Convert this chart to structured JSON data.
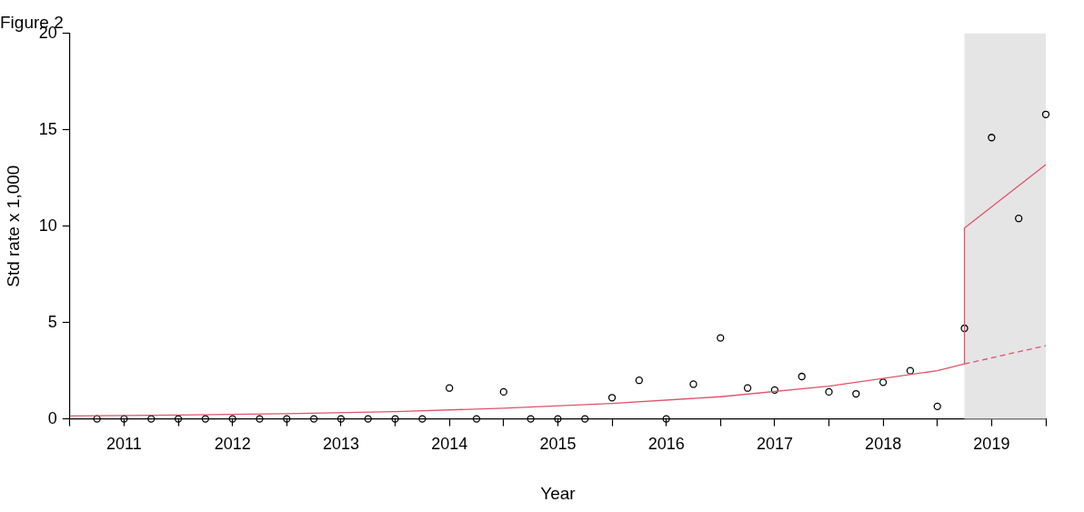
{
  "chart_data": {
    "type": "scatter",
    "title": "Figure 2",
    "xlabel": "Year",
    "ylabel": "Std rate x 1,000",
    "xlim": [
      2010.5,
      2019.5
    ],
    "ylim": [
      0,
      20
    ],
    "xticks": [
      {
        "value": 2010.5,
        "label": null
      },
      2011,
      {
        "value": 2011.5,
        "label": null
      },
      2012,
      {
        "value": 2012.5,
        "label": null
      },
      2013,
      {
        "value": 2013.5,
        "label": null
      },
      2014,
      {
        "value": 2014.5,
        "label": null
      },
      2015,
      {
        "value": 2015.5,
        "label": null
      },
      2016,
      {
        "value": 2016.5,
        "label": null
      },
      2017,
      {
        "value": 2017.5,
        "label": null
      },
      2018,
      {
        "value": 2018.5,
        "label": null
      },
      2019,
      {
        "value": 2019.5,
        "label": null
      }
    ],
    "yticks": [
      0,
      5,
      10,
      15,
      20
    ],
    "grid": false,
    "legend": false,
    "bands": [
      {
        "axis": "x",
        "from": 2018.75,
        "to": 2019.5,
        "color": "#e5e5e5"
      }
    ],
    "series": [
      {
        "color": "#000000",
        "marker": "circle",
        "x": [
          2010.75,
          2011,
          2011.25,
          2011.5,
          2011.75,
          2012,
          2012.25,
          2012.5,
          2012.75,
          2013,
          2013.25,
          2013.5,
          2013.75,
          2014,
          2014.25,
          2014.5,
          2014.75,
          2015,
          2015.25,
          2015.5,
          2015.75,
          2016,
          2016.25,
          2016.5,
          2016.75,
          2017,
          2017.25,
          2017.5,
          2017.75,
          2018,
          2018.25,
          2018.5,
          2018.75,
          2019,
          2019.25,
          2019.5
        ],
        "values": [
          0,
          0,
          0,
          0,
          0,
          0,
          0,
          0,
          0,
          0,
          0,
          0,
          0,
          1.6,
          0,
          1.4,
          0,
          0,
          0,
          1.1,
          2.0,
          0,
          1.8,
          4.2,
          1.6,
          1.5,
          2.2,
          1.4,
          1.3,
          1.9,
          2.5,
          0.65,
          4.7,
          14.6,
          10.4,
          15.8
        ]
      },
      {
        "type": "line",
        "color": "#df536b",
        "marker": "none",
        "line_style": "solid",
        "x": [
          2010.5,
          2011.5,
          2012.5,
          2013.5,
          2014.5,
          2015.5,
          2016.5,
          2017.5,
          2018.5,
          2018.75,
          2018.75,
          2019.5
        ],
        "values": [
          0.15,
          0.2,
          0.27,
          0.38,
          0.55,
          0.8,
          1.15,
          1.7,
          2.5,
          2.85,
          9.9,
          13.2
        ]
      },
      {
        "type": "line",
        "color": "#df536b",
        "marker": "none",
        "line_style": "dashed",
        "x": [
          2018.75,
          2019.5
        ],
        "values": [
          2.85,
          3.8
        ]
      }
    ]
  }
}
